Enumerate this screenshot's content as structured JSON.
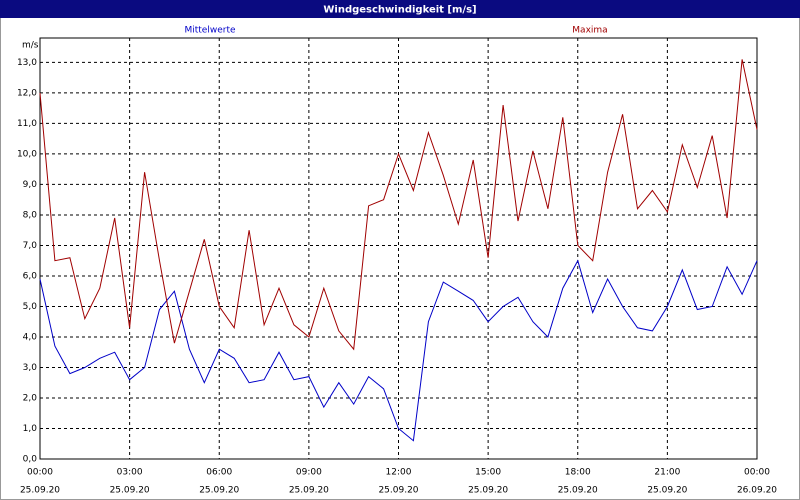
{
  "chart_data": {
    "type": "line",
    "title": "Windgeschwindigkeit [m/s]",
    "y_unit": "m/s",
    "x": [
      0,
      0.5,
      1,
      1.5,
      2,
      2.5,
      3,
      3.5,
      4,
      4.5,
      5,
      5.5,
      6,
      6.5,
      7,
      7.5,
      8,
      8.5,
      9,
      9.5,
      10,
      10.5,
      11,
      11.5,
      12,
      12.5,
      13,
      13.5,
      14,
      14.5,
      15,
      15.5,
      16,
      16.5,
      17,
      17.5,
      18,
      18.5,
      19,
      19.5,
      20,
      20.5,
      21,
      21.5,
      22,
      22.5,
      23,
      23.5,
      24
    ],
    "series": [
      {
        "name": "Mittelwerte",
        "color": "#0000c8",
        "values": [
          5.9,
          3.7,
          2.8,
          3.0,
          3.3,
          3.5,
          2.6,
          3.0,
          4.9,
          5.5,
          3.6,
          2.5,
          3.6,
          3.3,
          2.5,
          2.6,
          3.5,
          2.6,
          2.7,
          1.7,
          2.5,
          1.8,
          2.7,
          2.3,
          1.0,
          0.6,
          4.5,
          5.8,
          5.5,
          5.2,
          4.5,
          5.0,
          5.3,
          4.5,
          4.0,
          5.6,
          6.5,
          4.8,
          5.9,
          5.0,
          4.3,
          4.2,
          5.0,
          6.2,
          4.9,
          5.0,
          6.3,
          5.4,
          6.5
        ]
      },
      {
        "name": "Maxima",
        "color": "#a00000",
        "values": [
          12.0,
          6.5,
          6.6,
          4.6,
          5.6,
          7.9,
          4.3,
          9.4,
          6.5,
          3.8,
          5.5,
          7.2,
          5.0,
          4.3,
          7.5,
          4.4,
          5.6,
          4.4,
          4.0,
          5.6,
          4.2,
          3.6,
          8.3,
          8.5,
          10.0,
          8.8,
          10.7,
          9.3,
          7.7,
          9.8,
          6.6,
          11.6,
          7.8,
          10.1,
          8.2,
          11.2,
          7.0,
          6.5,
          9.4,
          11.3,
          8.2,
          8.8,
          8.1,
          10.3,
          8.9,
          10.6,
          7.9,
          13.1,
          10.8
        ]
      }
    ],
    "xlim": [
      0,
      24
    ],
    "xticks": [
      {
        "value": 0,
        "label": "00:00",
        "date": "25.09.20"
      },
      {
        "value": 3,
        "label": "03:00",
        "date": "25.09.20"
      },
      {
        "value": 6,
        "label": "06:00",
        "date": "25.09.20"
      },
      {
        "value": 9,
        "label": "09:00",
        "date": "25.09.20"
      },
      {
        "value": 12,
        "label": "12:00",
        "date": "25.09.20"
      },
      {
        "value": 15,
        "label": "15:00",
        "date": "25.09.20"
      },
      {
        "value": 18,
        "label": "18:00",
        "date": "25.09.20"
      },
      {
        "value": 21,
        "label": "21:00",
        "date": "25.09.20"
      },
      {
        "value": 24,
        "label": "00:00",
        "date": "26.09.20"
      }
    ],
    "ylim": [
      0,
      13.8
    ],
    "yticks": [
      {
        "value": 0,
        "label": "0,0"
      },
      {
        "value": 1,
        "label": "1,0"
      },
      {
        "value": 2,
        "label": "2,0"
      },
      {
        "value": 3,
        "label": "3,0"
      },
      {
        "value": 4,
        "label": "4,0"
      },
      {
        "value": 5,
        "label": "5,0"
      },
      {
        "value": 6,
        "label": "6,0"
      },
      {
        "value": 7,
        "label": "7,0"
      },
      {
        "value": 8,
        "label": "8,0"
      },
      {
        "value": 9,
        "label": "9,0"
      },
      {
        "value": 10,
        "label": "10,0"
      },
      {
        "value": 11,
        "label": "11,0"
      },
      {
        "value": 12,
        "label": "12,0"
      },
      {
        "value": 13,
        "label": "13,0"
      }
    ],
    "grid": true
  }
}
